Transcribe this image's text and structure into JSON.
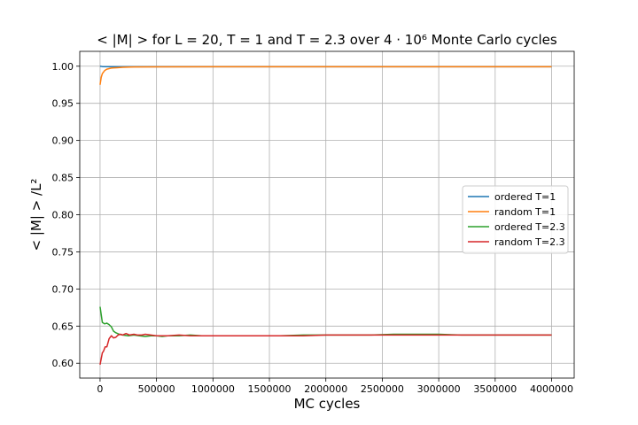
{
  "chart_data": {
    "type": "line",
    "title": "< |M| >  for L = 20, T = 1 and T = 2.3 over 4 · 10⁶ Monte Carlo cycles",
    "xlabel": "MC cycles",
    "ylabel": "< |M| > /L²",
    "xlim": [
      -180000,
      4200000
    ],
    "ylim": [
      0.58,
      1.02
    ],
    "xticks": [
      0,
      500000,
      1000000,
      1500000,
      2000000,
      2500000,
      3000000,
      3500000,
      4000000
    ],
    "xtick_labels": [
      "0",
      "500000",
      "1000000",
      "1500000",
      "2000000",
      "2500000",
      "3000000",
      "3500000",
      "4000000"
    ],
    "yticks": [
      0.6,
      0.65,
      0.7,
      0.75,
      0.8,
      0.85,
      0.9,
      0.95,
      1.0
    ],
    "ytick_labels": [
      "0.60",
      "0.65",
      "0.70",
      "0.75",
      "0.80",
      "0.85",
      "0.90",
      "0.95",
      "1.00"
    ],
    "grid": true,
    "legend_position": "center-right",
    "series": [
      {
        "name": "ordered T=1",
        "color": "#1f77b4",
        "x": [
          0,
          20000,
          100000,
          500000,
          1000000,
          2000000,
          3000000,
          4000000
        ],
        "y": [
          1.0,
          0.9995,
          0.9993,
          0.9993,
          0.9993,
          0.9993,
          0.9993,
          0.9993
        ]
      },
      {
        "name": "random T=1",
        "color": "#ff7f0e",
        "x": [
          0,
          10000,
          20000,
          40000,
          60000,
          100000,
          150000,
          200000,
          300000,
          500000,
          1000000,
          2000000,
          3000000,
          4000000
        ],
        "y": [
          0.975,
          0.985,
          0.99,
          0.994,
          0.996,
          0.9975,
          0.998,
          0.9985,
          0.999,
          0.9991,
          0.9993,
          0.9993,
          0.9993,
          0.9993
        ]
      },
      {
        "name": "ordered T=2.3",
        "color": "#2ca02c",
        "x": [
          0,
          20000,
          40000,
          60000,
          80000,
          100000,
          120000,
          140000,
          170000,
          200000,
          250000,
          300000,
          350000,
          400000,
          450000,
          500000,
          550000,
          600000,
          700000,
          800000,
          900000,
          1000000,
          1200000,
          1400000,
          1600000,
          1800000,
          2000000,
          2200000,
          2400000,
          2600000,
          2800000,
          3000000,
          3200000,
          3400000,
          3600000,
          3800000,
          4000000
        ],
        "y": [
          0.676,
          0.655,
          0.653,
          0.654,
          0.652,
          0.649,
          0.643,
          0.641,
          0.639,
          0.638,
          0.637,
          0.638,
          0.637,
          0.636,
          0.637,
          0.637,
          0.636,
          0.637,
          0.637,
          0.638,
          0.637,
          0.637,
          0.637,
          0.637,
          0.637,
          0.638,
          0.638,
          0.638,
          0.638,
          0.639,
          0.639,
          0.639,
          0.638,
          0.638,
          0.638,
          0.638,
          0.638
        ]
      },
      {
        "name": "random T=2.3",
        "color": "#d62728",
        "x": [
          0,
          10000,
          20000,
          30000,
          45000,
          60000,
          80000,
          100000,
          120000,
          140000,
          160000,
          180000,
          200000,
          230000,
          260000,
          300000,
          330000,
          370000,
          400000,
          450000,
          500000,
          550000,
          600000,
          700000,
          800000,
          900000,
          1000000,
          1100000,
          1200000,
          1400000,
          1600000,
          1800000,
          2000000,
          2200000,
          2400000,
          2600000,
          2800000,
          3000000,
          3200000,
          3400000,
          3600000,
          3800000,
          4000000
        ],
        "y": [
          0.598,
          0.606,
          0.614,
          0.616,
          0.622,
          0.622,
          0.633,
          0.637,
          0.634,
          0.635,
          0.638,
          0.639,
          0.638,
          0.64,
          0.638,
          0.639,
          0.638,
          0.638,
          0.639,
          0.638,
          0.637,
          0.637,
          0.637,
          0.638,
          0.637,
          0.637,
          0.637,
          0.637,
          0.637,
          0.637,
          0.637,
          0.637,
          0.638,
          0.638,
          0.638,
          0.638,
          0.638,
          0.638,
          0.638,
          0.638,
          0.638,
          0.638,
          0.638
        ]
      }
    ]
  }
}
